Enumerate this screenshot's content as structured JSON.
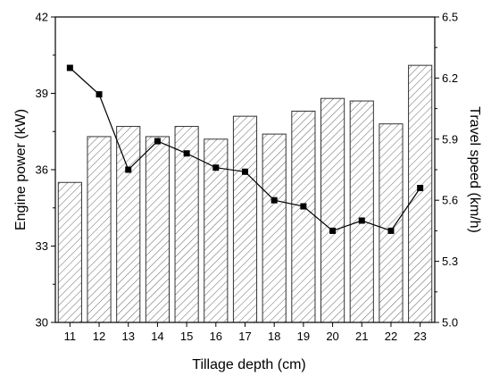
{
  "chart_data": {
    "type": "bar",
    "xlabel": "Tillage depth (cm)",
    "ylabel_left": "Engine power (kW)",
    "ylabel_right": "Travel speed (km/h)",
    "categories": [
      "11",
      "12",
      "13",
      "14",
      "15",
      "16",
      "17",
      "18",
      "19",
      "20",
      "21",
      "22",
      "23"
    ],
    "ylim_left": [
      30,
      42
    ],
    "ylim_right": [
      5.0,
      6.5
    ],
    "yticks_left": [
      "30",
      "33",
      "36",
      "39",
      "42"
    ],
    "yticks_right": [
      "5.0",
      "5.3",
      "5.6",
      "5.9",
      "6.2",
      "6.5"
    ],
    "series": [
      {
        "type": "bar",
        "axis": "left",
        "pattern": "hatched",
        "values": [
          35.5,
          37.3,
          37.7,
          37.3,
          37.7,
          37.2,
          38.1,
          37.4,
          38.3,
          38.8,
          38.7,
          37.8,
          40.1
        ]
      },
      {
        "type": "line",
        "axis": "right",
        "marker": "square",
        "values": [
          6.25,
          6.12,
          5.75,
          5.89,
          5.83,
          5.76,
          5.74,
          5.6,
          5.57,
          5.45,
          5.5,
          5.45,
          5.66
        ]
      }
    ],
    "colors": {
      "bar_fill": "#ffffff",
      "hatch": "#555555",
      "bar_edge": "#333333",
      "line": "#000000"
    }
  }
}
